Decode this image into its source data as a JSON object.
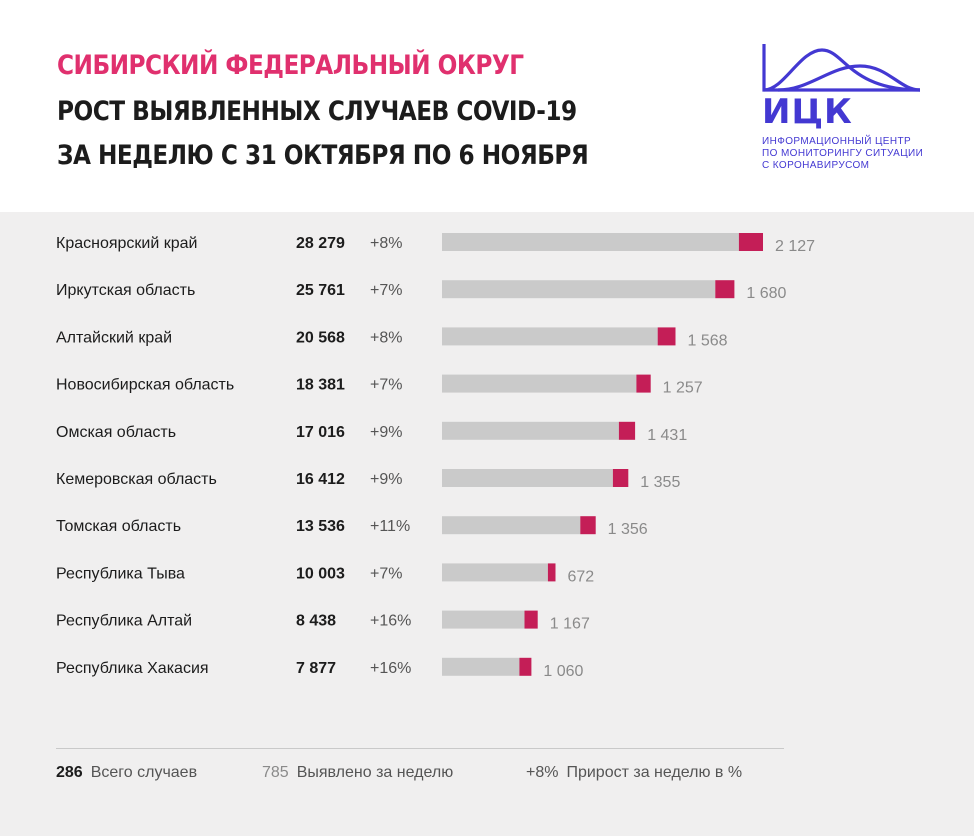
{
  "header": {
    "title_line1": "СИБИРСКИЙ ФЕДЕРАЛЬНЫЙ ОКРУГ",
    "title_line2": "РОСТ ВЫЯВЛЕННЫХ СЛУЧАЕВ COVID-19",
    "title_line3": "ЗА НЕДЕЛЮ С 31 ОКТЯБРЯ ПО 6 НОЯБРЯ"
  },
  "logo": {
    "abbr": "ИЦК",
    "line1": "ИНФОРМАЦИОННЫЙ ЦЕНТР",
    "line2": "ПО МОНИТОРИНГУ СИТУАЦИИ",
    "line3": "С КОРОНАВИРУСОМ"
  },
  "colors": {
    "title_accent": "#e0306e",
    "logo": "#4338d2",
    "bar_total": "#cacaca",
    "bar_week": "#c41e57",
    "background": "#f0efef"
  },
  "legend": {
    "total_value": "286",
    "total_label": "Всего случаев",
    "week_value": "785",
    "week_label": "Выявлено за неделю",
    "growth_value": "+8%",
    "growth_label": "Прирост за неделю в %"
  },
  "chart_data": {
    "type": "bar",
    "orientation": "horizontal",
    "categories": [
      "Красноярский край",
      "Иркутская область",
      "Алтайский край",
      "Новосибирская область",
      "Омская область",
      "Кемеровская область",
      "Томская область",
      "Республика Тыва",
      "Республика Алтай",
      "Республика Хакасия"
    ],
    "total_labels": [
      "28 279",
      "25 761",
      "20 568",
      "18 381",
      "17 016",
      "16 412",
      "13 536",
      "10 003",
      "8 438",
      "7 877"
    ],
    "totals": [
      28279,
      25761,
      20568,
      18381,
      17016,
      16412,
      13536,
      10003,
      8438,
      7877
    ],
    "growth_labels": [
      "+8%",
      "+7%",
      "+8%",
      "+7%",
      "+9%",
      "+9%",
      "+11%",
      "+7%",
      "+16%",
      "+16%"
    ],
    "week_labels": [
      "2 127",
      "1 680",
      "1 568",
      "1 257",
      "1 431",
      "1 355",
      "1 356",
      "672",
      "1 167",
      "1 060"
    ],
    "week_values": [
      2127,
      1680,
      1568,
      1257,
      1431,
      1355,
      1356,
      672,
      1167,
      1060
    ],
    "stacked": true,
    "grid": false
  }
}
